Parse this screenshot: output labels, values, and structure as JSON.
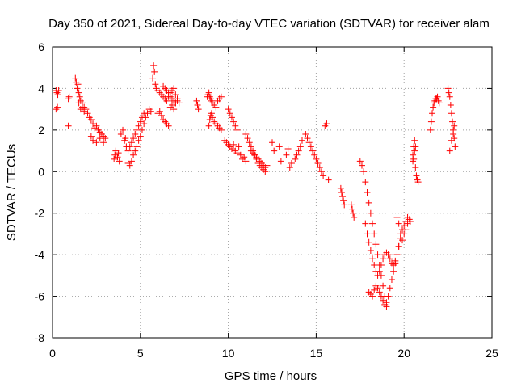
{
  "chart_data": {
    "type": "scatter",
    "title": "Day 350 of 2021, Sidereal Day-to-day VTEC variation (SDTVAR) for receiver alam",
    "xlabel": "GPS time / hours",
    "ylabel": "SDTVAR / TECUs",
    "xlim": [
      0,
      25
    ],
    "ylim": [
      -8,
      6
    ],
    "xticks": [
      0,
      5,
      10,
      15,
      20,
      25
    ],
    "yticks": [
      -8,
      -6,
      -4,
      -2,
      0,
      2,
      4,
      6
    ],
    "xtick_labels": [
      "0",
      "5",
      "10",
      "15",
      "20",
      "25"
    ],
    "ytick_labels": [
      "-8",
      "-6",
      "-4",
      "-2",
      "0",
      "2",
      "4",
      "6"
    ],
    "grid": true,
    "marker": "+",
    "color": "#ff0000",
    "series": [
      {
        "x": [
          0.2,
          0.25,
          0.3,
          0.35,
          0.2,
          0.28,
          0.9,
          0.95,
          0.9,
          1.3,
          1.35,
          1.4,
          1.45,
          1.5,
          1.55,
          1.6,
          1.7,
          1.8,
          1.9,
          2.0,
          2.1,
          2.2,
          2.3,
          2.4,
          2.5,
          2.6,
          2.7,
          2.8,
          2.9,
          3.0,
          2.2,
          2.3,
          2.5,
          2.7,
          2.9,
          1.5,
          1.6,
          1.7,
          1.8,
          3.5,
          3.55,
          3.6,
          3.7,
          3.75,
          3.8,
          3.9,
          4.0,
          4.1,
          4.15,
          4.2,
          4.3,
          4.4,
          4.5,
          4.6,
          4.7,
          4.8,
          4.9,
          5.0,
          5.1,
          5.2,
          5.3,
          5.4,
          5.5,
          5.6,
          4.3,
          4.4,
          4.5,
          4.6,
          4.7,
          4.8,
          4.9,
          5.0,
          5.1,
          5.2,
          5.7,
          5.75,
          5.8,
          5.85,
          5.9,
          6.0,
          6.1,
          6.2,
          6.3,
          6.4,
          6.5,
          6.6,
          6.7,
          6.8,
          6.9,
          7.0,
          7.1,
          7.2,
          6.0,
          6.1,
          6.2,
          6.3,
          6.4,
          6.5,
          6.6,
          6.7,
          6.8,
          6.9,
          7.0,
          7.1,
          6.3,
          6.4,
          6.5,
          6.6,
          6.7,
          6.8,
          6.9,
          7.0,
          8.2,
          8.25,
          8.3,
          8.8,
          8.85,
          8.9,
          8.95,
          9.0,
          9.05,
          9.1,
          9.2,
          9.3,
          9.4,
          9.5,
          9.6,
          8.9,
          8.95,
          9.0,
          9.05,
          9.1,
          9.2,
          9.3,
          9.4,
          9.5,
          9.6,
          9.8,
          9.9,
          10.0,
          10.1,
          10.2,
          10.3,
          10.4,
          10.5,
          10.6,
          10.7,
          10.8,
          10.9,
          11.0,
          10.0,
          10.1,
          10.2,
          10.3,
          10.4,
          10.5,
          11.0,
          11.1,
          11.2,
          11.3,
          11.4,
          11.5,
          11.6,
          11.7,
          11.8,
          11.9,
          12.0,
          12.1,
          12.2,
          11.3,
          11.4,
          11.5,
          11.6,
          11.7,
          11.8,
          11.9,
          12.0,
          12.1,
          12.5,
          12.6,
          12.9,
          13.0,
          13.3,
          13.4,
          13.5,
          13.6,
          13.8,
          13.9,
          14.0,
          14.1,
          14.2,
          14.4,
          14.5,
          14.6,
          14.7,
          14.8,
          14.9,
          15.0,
          15.1,
          15.2,
          15.3,
          15.4,
          15.5,
          15.6,
          15.7,
          16.4,
          16.45,
          16.5,
          16.55,
          16.6,
          17.0,
          17.05,
          17.1,
          17.15,
          17.5,
          17.6,
          17.7,
          17.8,
          17.9,
          18.0,
          18.1,
          18.2,
          18.3,
          18.4,
          18.5,
          18.6,
          18.7,
          18.8,
          18.9,
          19.0,
          19.1,
          19.2,
          19.3,
          19.4,
          19.5,
          19.6,
          19.7,
          19.8,
          19.9,
          17.8,
          17.9,
          18.0,
          18.1,
          18.2,
          18.3,
          18.4,
          18.5,
          18.6,
          18.7,
          18.8,
          18.9,
          19.0,
          19.1,
          19.2,
          19.3,
          19.4,
          19.5,
          19.6,
          19.7,
          19.8,
          19.9,
          20.0,
          20.1,
          20.2,
          18.0,
          18.1,
          18.2,
          18.3,
          18.4,
          18.5,
          18.6,
          18.7,
          18.8,
          18.9,
          19.0,
          19.6,
          19.7,
          19.8,
          19.9,
          20.0,
          20.1,
          20.2,
          20.3,
          20.35,
          20.5,
          20.55,
          20.6,
          20.65,
          20.7,
          20.75,
          20.8,
          20.5,
          20.55,
          20.6,
          20.65,
          21.5,
          21.55,
          21.6,
          21.65,
          21.7,
          21.75,
          21.8,
          21.85,
          21.9,
          21.95,
          22.0,
          22.5,
          22.55,
          22.6,
          22.65,
          22.7,
          22.75,
          22.8,
          22.85,
          22.9,
          22.6,
          22.7,
          22.8,
          22.85
        ],
        "y": [
          3.9,
          3.8,
          3.7,
          3.9,
          3.0,
          3.1,
          3.5,
          3.6,
          2.2,
          4.5,
          4.3,
          4.0,
          4.2,
          3.8,
          3.6,
          3.4,
          3.3,
          3.1,
          3.0,
          2.8,
          2.6,
          2.5,
          2.3,
          2.1,
          2.2,
          2.0,
          1.9,
          1.8,
          1.7,
          1.6,
          1.7,
          1.5,
          1.4,
          1.6,
          1.4,
          3.3,
          3.0,
          3.1,
          2.9,
          0.6,
          0.8,
          1.0,
          0.7,
          0.9,
          0.5,
          1.8,
          2.0,
          1.5,
          1.6,
          1.2,
          0.4,
          0.3,
          0.5,
          0.8,
          1.0,
          1.2,
          1.5,
          1.7,
          2.0,
          2.3,
          2.6,
          2.8,
          3.0,
          2.9,
          1.0,
          1.2,
          1.4,
          1.6,
          1.8,
          2.0,
          2.2,
          2.4,
          2.6,
          2.8,
          4.5,
          5.1,
          4.8,
          4.2,
          4.0,
          3.9,
          3.8,
          3.7,
          3.6,
          3.5,
          3.4,
          3.6,
          3.8,
          3.9,
          4.0,
          3.7,
          3.5,
          3.3,
          2.8,
          2.9,
          2.7,
          2.5,
          2.4,
          2.3,
          2.2,
          3.1,
          3.2,
          3.0,
          3.3,
          3.4,
          4.1,
          4.0,
          3.9,
          3.8,
          3.6,
          3.5,
          3.4,
          3.3,
          3.4,
          3.2,
          3.0,
          3.6,
          3.7,
          3.8,
          3.6,
          3.5,
          3.4,
          3.3,
          3.2,
          3.1,
          3.4,
          3.5,
          3.6,
          2.2,
          2.5,
          2.7,
          2.8,
          2.6,
          2.4,
          2.3,
          2.2,
          2.1,
          2.0,
          1.5,
          1.4,
          1.3,
          1.2,
          1.1,
          1.3,
          1.0,
          0.9,
          1.2,
          0.8,
          0.6,
          0.7,
          0.5,
          3.0,
          2.8,
          2.6,
          2.4,
          2.2,
          2.0,
          1.8,
          1.6,
          1.4,
          1.2,
          1.0,
          0.8,
          0.6,
          0.4,
          0.3,
          0.2,
          0.1,
          0.0,
          0.3,
          1.0,
          0.9,
          0.8,
          0.7,
          0.6,
          0.5,
          0.4,
          0.3,
          0.2,
          1.4,
          1.0,
          1.2,
          0.5,
          0.8,
          1.1,
          0.2,
          0.4,
          0.6,
          0.8,
          1.0,
          1.2,
          1.5,
          1.8,
          1.6,
          1.4,
          1.2,
          1.0,
          0.8,
          0.6,
          0.4,
          0.2,
          0.0,
          -0.2,
          2.2,
          2.3,
          -0.4,
          -0.8,
          -1.0,
          -1.2,
          -1.4,
          -1.6,
          -1.6,
          -1.8,
          -2.0,
          -2.2,
          0.5,
          0.3,
          0.0,
          -0.5,
          -1.0,
          -1.5,
          -2.0,
          -2.5,
          -3.0,
          -3.5,
          -4.0,
          -4.5,
          -5.0,
          -5.5,
          -6.0,
          -6.3,
          -6.0,
          -5.6,
          -5.2,
          -4.8,
          -4.4,
          -4.0,
          -3.6,
          -3.2,
          -2.8,
          -2.5,
          -3.0,
          -3.4,
          -3.8,
          -4.2,
          -4.5,
          -4.8,
          -5.0,
          -4.8,
          -4.5,
          -4.2,
          -4.0,
          -3.9,
          -4.0,
          -4.2,
          -4.4,
          -4.5,
          -4.3,
          -4.0,
          -3.6,
          -3.2,
          -2.8,
          -2.6,
          -2.4,
          -2.2,
          -5.8,
          -5.9,
          -6.0,
          -5.7,
          -5.5,
          -5.6,
          -5.8,
          -6.0,
          -6.2,
          -6.4,
          -6.5,
          -2.2,
          -2.5,
          -3.0,
          -3.3,
          -3.0,
          -2.8,
          -2.5,
          -2.3,
          -2.4,
          0.8,
          1.2,
          1.5,
          0.2,
          -0.2,
          -0.4,
          -0.5,
          0.5,
          0.6,
          1.0,
          1.2,
          2.0,
          2.4,
          2.8,
          3.1,
          3.3,
          3.4,
          3.5,
          3.5,
          3.6,
          3.4,
          3.3,
          4.0,
          3.8,
          3.6,
          3.2,
          2.8,
          2.4,
          2.0,
          1.6,
          1.2,
          1.0,
          1.5,
          1.8,
          2.2
        ],
        "y_min_observed": -6.5,
        "y_max_observed": 5.1
      }
    ]
  }
}
